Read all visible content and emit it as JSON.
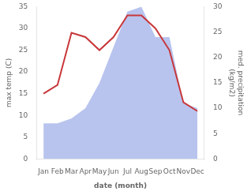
{
  "chart_data": {
    "type": "line",
    "categories": [
      "Jan",
      "Feb",
      "Mar",
      "Apr",
      "May",
      "Jun",
      "Jul",
      "Aug",
      "Sep",
      "Oct",
      "Nov",
      "Dec"
    ],
    "xlabel": "date (month)",
    "ylabel": "max temp (C)",
    "y2label": "med. precipitation\n(kg/m2)",
    "series": [
      {
        "type": "area",
        "color": "#b8c4ee",
        "axis": "y2",
        "values": [
          7,
          7,
          8,
          10,
          15,
          22,
          29,
          30,
          24,
          24,
          11,
          10
        ]
      },
      {
        "type": "line",
        "color": "#c8373a",
        "values": [
          15,
          17,
          29,
          28,
          25,
          28,
          33,
          33,
          30,
          25,
          13,
          11
        ]
      }
    ],
    "ylim": [
      0,
      35
    ],
    "yticks": [
      0,
      5,
      10,
      15,
      20,
      25,
      30,
      35
    ],
    "y2lim": [
      0,
      30
    ],
    "y2ticks": [
      0,
      5,
      10,
      15,
      20,
      25,
      30
    ],
    "grid": false
  }
}
